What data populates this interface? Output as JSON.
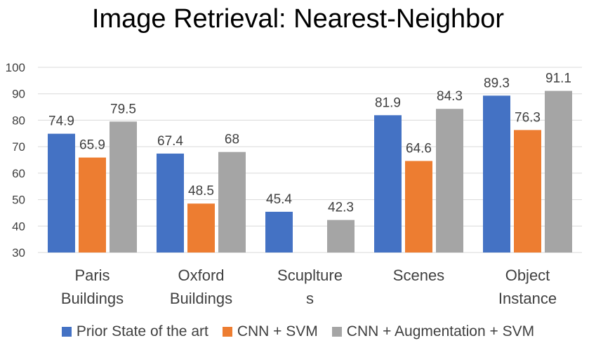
{
  "chart_data": {
    "type": "bar",
    "title": "Image Retrieval: Nearest-Neighbor",
    "categories": [
      [
        "Paris",
        "Buildings"
      ],
      [
        "Oxford",
        "Buildings"
      ],
      [
        "Scuplture",
        "s"
      ],
      [
        "Scenes"
      ],
      [
        "Object",
        "Instance"
      ]
    ],
    "category_labels": [
      "Paris Buildings",
      "Oxford Buildings",
      "Scupltures",
      "Scenes",
      "Object Instance"
    ],
    "series": [
      {
        "name": "Prior State of the art",
        "color": "#4472C4",
        "values": [
          74.9,
          67.4,
          45.4,
          81.9,
          89.3
        ]
      },
      {
        "name": "CNN + SVM",
        "color": "#ED7D31",
        "values": [
          65.9,
          48.5,
          null,
          64.6,
          76.3
        ]
      },
      {
        "name": "CNN + Augmentation + SVM",
        "color": "#A5A5A5",
        "values": [
          79.5,
          68,
          42.3,
          84.3,
          91.1
        ]
      }
    ],
    "ylim": [
      30,
      100
    ],
    "yticks": [
      30,
      40,
      50,
      60,
      70,
      80,
      90,
      100
    ],
    "grid": true,
    "legend": "bottom"
  }
}
